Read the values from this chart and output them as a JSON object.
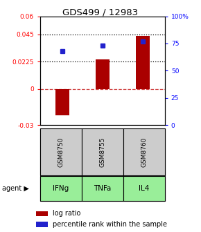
{
  "title": "GDS499 / 12983",
  "samples": [
    "GSM8750",
    "GSM8755",
    "GSM8760"
  ],
  "agents": [
    "IFNg",
    "TNFa",
    "IL4"
  ],
  "log_ratios": [
    -0.022,
    0.0245,
    0.0435
  ],
  "percentile_ranks": [
    68,
    73,
    77
  ],
  "bar_color": "#aa0000",
  "dot_color": "#2222cc",
  "left_ylim": [
    -0.03,
    0.06
  ],
  "right_ylim": [
    0,
    100
  ],
  "left_yticks": [
    -0.03,
    0,
    0.0225,
    0.045,
    0.06
  ],
  "left_yticklabels": [
    "-0.03",
    "0",
    "0.0225",
    "0.045",
    "0.06"
  ],
  "right_yticks": [
    0,
    25,
    50,
    75,
    100
  ],
  "right_yticklabels": [
    "0",
    "25",
    "50",
    "75",
    "100%"
  ],
  "hlines": [
    0.0225,
    0.045
  ],
  "zero_line": 0,
  "gsm_color": "#cccccc",
  "agent_color": "#99ee99",
  "legend_bar_color": "#aa0000",
  "legend_dot_color": "#2222cc",
  "bar_width": 0.35
}
